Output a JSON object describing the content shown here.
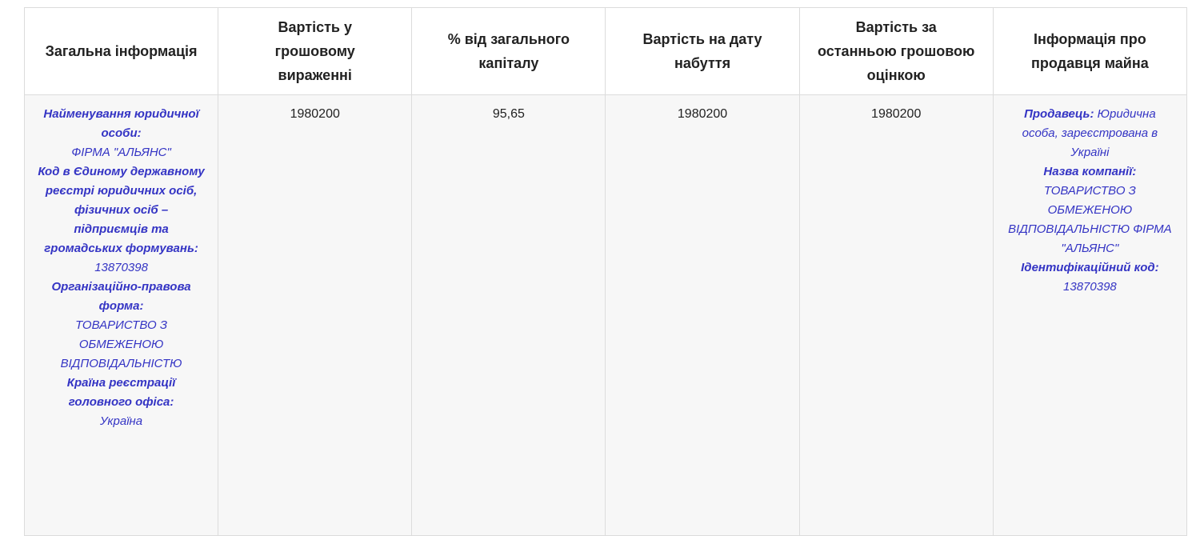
{
  "table": {
    "header": [
      "Загальна інформація",
      "Вартість у грошовому вираженні",
      "% від загального капіталу",
      "Вартість на дату набуття",
      "Вартість за останньою грошовою оцінкою",
      "Інформація про продавця майна"
    ],
    "rows": [
      {
        "general_info": [
          {
            "label": "Найменування юридичної особи:",
            "value": "ФІРМА \"АЛЬЯНС\""
          },
          {
            "label": "Код в Єдиному державному реєстрі юридичних осіб, фізичних осіб – підприємців та громадських формувань:",
            "value": "13870398"
          },
          {
            "label": "Організаційно-правова форма:",
            "value": "ТОВАРИСТВО З ОБМЕЖЕНОЮ ВІДПОВІДАЛЬНІСТЮ"
          },
          {
            "label": "Країна реєстрації головного офіса:",
            "value": "Україна"
          }
        ],
        "monetary_value": "1980200",
        "capital_percent": "95,65",
        "acquisition_value": "1980200",
        "last_valuation": "1980200",
        "seller": [
          {
            "label": "Продавець:",
            "value": "Юридична особа, зареєстрована в Україні"
          },
          {
            "label": "Назва компанії:",
            "value": "ТОВАРИСТВО З ОБМЕЖЕНОЮ ВІДПОВІДАЛЬНІСТЮ ФІРМА \"АЛЬЯНС\""
          },
          {
            "label": "Ідентифікаційний код:",
            "value": "13870398"
          }
        ]
      }
    ]
  }
}
